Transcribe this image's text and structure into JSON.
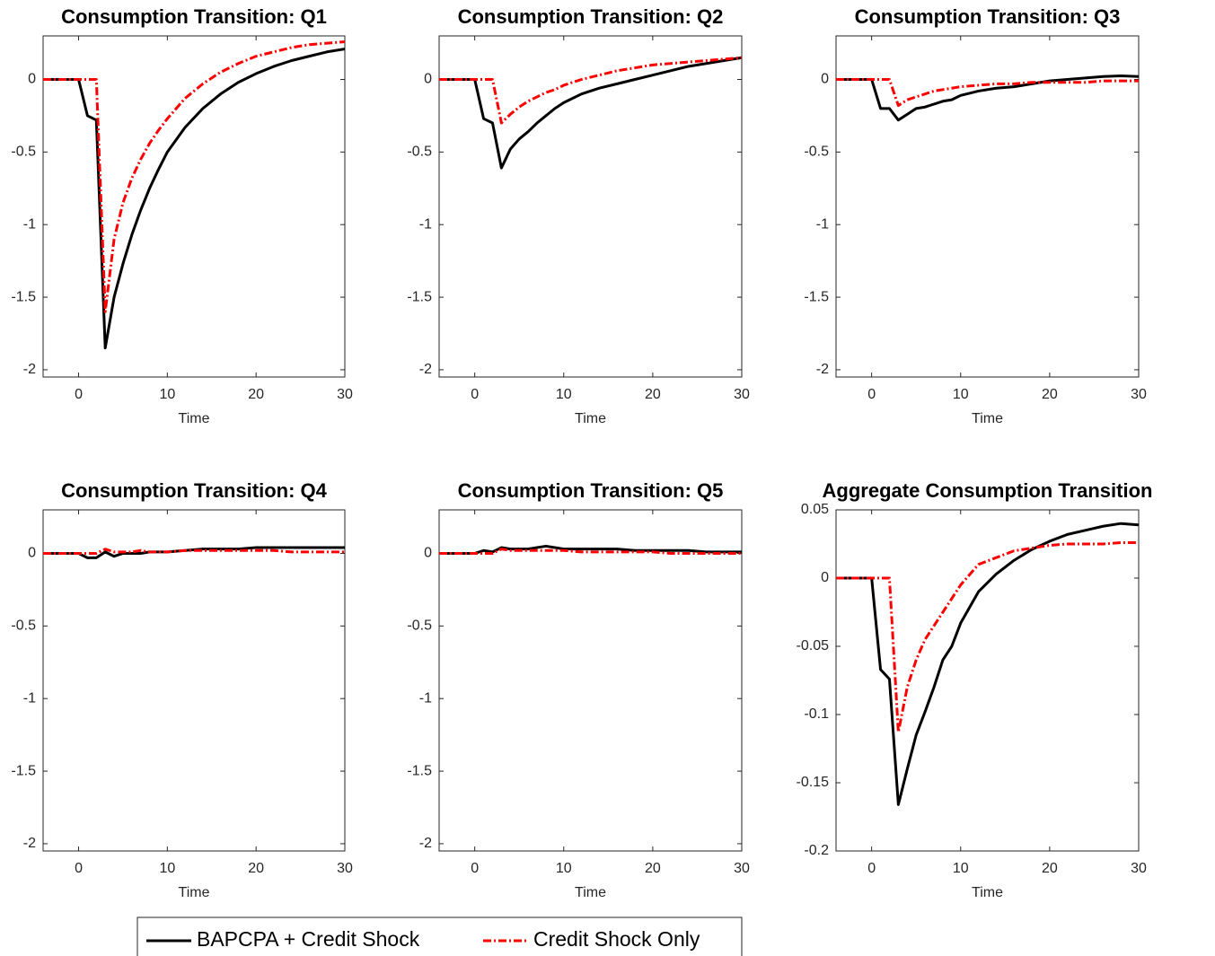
{
  "chart_data": [
    {
      "type": "line",
      "title": "Consumption Transition: Q1",
      "xlabel": "Time",
      "x": [
        -4,
        0,
        1,
        2,
        3,
        4,
        5,
        6,
        7,
        8,
        9,
        10,
        12,
        14,
        16,
        18,
        20,
        22,
        24,
        26,
        28,
        30
      ],
      "xlim": [
        -4,
        30
      ],
      "xticks": [
        0,
        10,
        20,
        30
      ],
      "ylim": [
        -2.05,
        0.3
      ],
      "yticks": [
        -2,
        -1.5,
        -1,
        -0.5,
        0
      ],
      "series": [
        {
          "name": "BAPCPA + Credit Shock",
          "color": "#000000",
          "values": [
            0,
            0,
            -0.25,
            -0.28,
            -1.85,
            -1.5,
            -1.27,
            -1.07,
            -0.9,
            -0.75,
            -0.62,
            -0.5,
            -0.33,
            -0.2,
            -0.1,
            -0.02,
            0.04,
            0.09,
            0.13,
            0.16,
            0.19,
            0.21
          ]
        },
        {
          "name": "Credit Shock Only",
          "color": "#ff0000",
          "values": [
            0,
            0,
            0,
            0,
            -1.6,
            -1.1,
            -0.85,
            -0.68,
            -0.55,
            -0.44,
            -0.35,
            -0.27,
            -0.13,
            -0.03,
            0.05,
            0.11,
            0.16,
            0.19,
            0.22,
            0.24,
            0.25,
            0.26
          ]
        }
      ]
    },
    {
      "type": "line",
      "title": "Consumption Transition: Q2",
      "xlabel": "Time",
      "x": [
        -4,
        0,
        1,
        2,
        3,
        4,
        5,
        6,
        7,
        8,
        9,
        10,
        12,
        14,
        16,
        18,
        20,
        22,
        24,
        26,
        28,
        30
      ],
      "xlim": [
        -4,
        30
      ],
      "xticks": [
        0,
        10,
        20,
        30
      ],
      "ylim": [
        -2.05,
        0.3
      ],
      "yticks": [
        -2,
        -1.5,
        -1,
        -0.5,
        0
      ],
      "series": [
        {
          "name": "BAPCPA + Credit Shock",
          "color": "#000000",
          "values": [
            0,
            0,
            -0.27,
            -0.3,
            -0.61,
            -0.48,
            -0.41,
            -0.36,
            -0.3,
            -0.25,
            -0.2,
            -0.16,
            -0.1,
            -0.06,
            -0.03,
            0,
            0.03,
            0.06,
            0.09,
            0.11,
            0.13,
            0.15
          ]
        },
        {
          "name": "Credit Shock Only",
          "color": "#ff0000",
          "values": [
            0,
            0,
            0,
            0,
            -0.3,
            -0.24,
            -0.19,
            -0.15,
            -0.12,
            -0.09,
            -0.07,
            -0.04,
            0,
            0.03,
            0.06,
            0.08,
            0.1,
            0.11,
            0.12,
            0.13,
            0.14,
            0.15
          ]
        }
      ]
    },
    {
      "type": "line",
      "title": "Consumption Transition: Q3",
      "xlabel": "Time",
      "x": [
        -4,
        0,
        1,
        2,
        3,
        4,
        5,
        6,
        7,
        8,
        9,
        10,
        12,
        14,
        16,
        18,
        20,
        22,
        24,
        26,
        28,
        30
      ],
      "xlim": [
        -4,
        30
      ],
      "xticks": [
        0,
        10,
        20,
        30
      ],
      "ylim": [
        -2.05,
        0.3
      ],
      "yticks": [
        -2,
        -1.5,
        -1,
        -0.5,
        0
      ],
      "series": [
        {
          "name": "BAPCPA + Credit Shock",
          "color": "#000000",
          "values": [
            0,
            0,
            -0.2,
            -0.2,
            -0.28,
            -0.24,
            -0.2,
            -0.19,
            -0.17,
            -0.15,
            -0.14,
            -0.11,
            -0.08,
            -0.06,
            -0.05,
            -0.03,
            -0.01,
            0,
            0.01,
            0.02,
            0.025,
            0.02
          ]
        },
        {
          "name": "Credit Shock Only",
          "color": "#ff0000",
          "values": [
            0,
            0,
            0,
            0,
            -0.18,
            -0.14,
            -0.12,
            -0.1,
            -0.08,
            -0.07,
            -0.06,
            -0.05,
            -0.04,
            -0.03,
            -0.03,
            -0.02,
            -0.02,
            -0.02,
            -0.02,
            -0.01,
            -0.01,
            -0.01
          ]
        }
      ]
    },
    {
      "type": "line",
      "title": "Consumption Transition: Q4",
      "xlabel": "Time",
      "x": [
        -4,
        0,
        1,
        2,
        3,
        4,
        5,
        6,
        7,
        8,
        9,
        10,
        12,
        14,
        16,
        18,
        20,
        22,
        24,
        26,
        28,
        30
      ],
      "xlim": [
        -4,
        30
      ],
      "xticks": [
        0,
        10,
        20,
        30
      ],
      "ylim": [
        -2.05,
        0.3
      ],
      "yticks": [
        -2,
        -1.5,
        -1,
        -0.5,
        0
      ],
      "series": [
        {
          "name": "BAPCPA + Credit Shock",
          "color": "#000000",
          "values": [
            0,
            0,
            -0.03,
            -0.03,
            0.01,
            -0.02,
            0,
            0,
            0,
            0.01,
            0.01,
            0.01,
            0.02,
            0.03,
            0.03,
            0.03,
            0.04,
            0.04,
            0.04,
            0.04,
            0.04,
            0.04
          ]
        },
        {
          "name": "Credit Shock Only",
          "color": "#ff0000",
          "values": [
            0,
            0,
            0,
            0,
            0.03,
            0.01,
            0.01,
            0.01,
            0.02,
            0.01,
            0.01,
            0.01,
            0.02,
            0.02,
            0.02,
            0.02,
            0.02,
            0.02,
            0.01,
            0.01,
            0.01,
            0.01
          ]
        }
      ]
    },
    {
      "type": "line",
      "title": "Consumption Transition: Q5",
      "xlabel": "Time",
      "x": [
        -4,
        0,
        1,
        2,
        3,
        4,
        5,
        6,
        7,
        8,
        9,
        10,
        12,
        14,
        16,
        18,
        20,
        22,
        24,
        26,
        28,
        30
      ],
      "xlim": [
        -4,
        30
      ],
      "xticks": [
        0,
        10,
        20,
        30
      ],
      "ylim": [
        -2.05,
        0.3
      ],
      "yticks": [
        -2,
        -1.5,
        -1,
        -0.5,
        0
      ],
      "series": [
        {
          "name": "BAPCPA + Credit Shock",
          "color": "#000000",
          "values": [
            0,
            0,
            0.02,
            0.01,
            0.04,
            0.03,
            0.03,
            0.03,
            0.04,
            0.05,
            0.04,
            0.03,
            0.03,
            0.03,
            0.03,
            0.02,
            0.02,
            0.02,
            0.02,
            0.01,
            0.01,
            0.01
          ]
        },
        {
          "name": "Credit Shock Only",
          "color": "#ff0000",
          "values": [
            0,
            0,
            0,
            0,
            0.03,
            0.02,
            0.02,
            0.02,
            0.02,
            0.02,
            0.02,
            0.02,
            0.01,
            0.01,
            0.01,
            0.01,
            0.01,
            0,
            0,
            0,
            0,
            0
          ]
        }
      ]
    },
    {
      "type": "line",
      "title": "Aggregate Consumption Transition",
      "xlabel": "Time",
      "x": [
        -4,
        0,
        1,
        2,
        3,
        4,
        5,
        6,
        7,
        8,
        9,
        10,
        12,
        14,
        16,
        18,
        20,
        22,
        24,
        26,
        28,
        30
      ],
      "xlim": [
        -4,
        30
      ],
      "xticks": [
        0,
        10,
        20,
        30
      ],
      "ylim": [
        -0.2,
        0.05
      ],
      "yticks": [
        -0.2,
        -0.15,
        -0.1,
        -0.05,
        0,
        0.05
      ],
      "series": [
        {
          "name": "BAPCPA + Credit Shock",
          "color": "#000000",
          "values": [
            0,
            0,
            -0.067,
            -0.074,
            -0.166,
            -0.14,
            -0.115,
            -0.098,
            -0.08,
            -0.06,
            -0.05,
            -0.033,
            -0.01,
            0.003,
            0.013,
            0.021,
            0.027,
            0.032,
            0.035,
            0.038,
            0.04,
            0.039
          ]
        },
        {
          "name": "Credit Shock Only",
          "color": "#ff0000",
          "values": [
            0,
            0,
            0,
            0,
            -0.113,
            -0.08,
            -0.06,
            -0.045,
            -0.035,
            -0.025,
            -0.015,
            -0.005,
            0.01,
            0.015,
            0.02,
            0.022,
            0.024,
            0.025,
            0.025,
            0.025,
            0.026,
            0.026
          ]
        }
      ]
    }
  ]
}
